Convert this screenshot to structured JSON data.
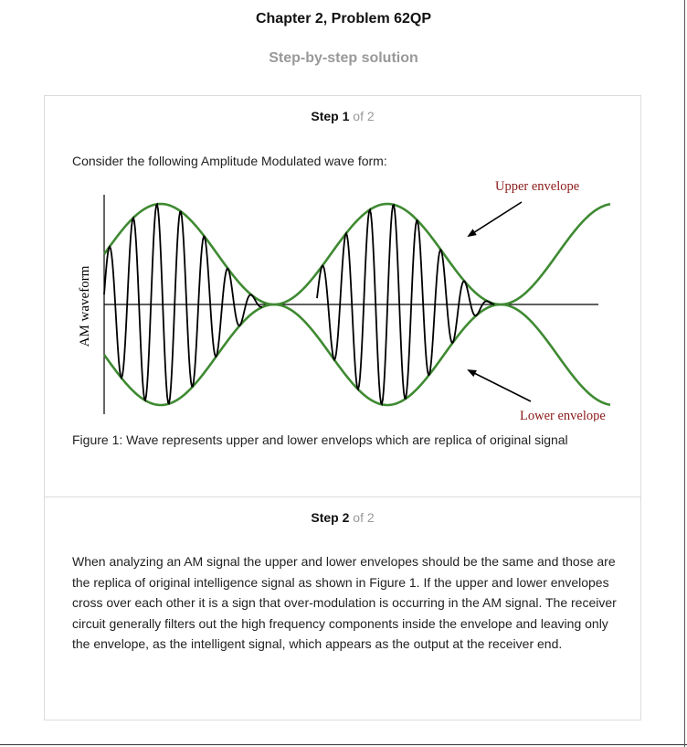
{
  "header": {
    "title": "Chapter 2, Problem 62QP",
    "subtitle": "Step-by-step solution"
  },
  "steps": [
    {
      "word": "Step",
      "number": "1",
      "of_text": "of 2",
      "intro": "Consider the following Amplitude Modulated wave form:",
      "figure": {
        "y_axis_label": "AM waveform",
        "upper_label": "Upper envelope",
        "lower_label": "Lower envelope",
        "envelope_color": "#3f8a32",
        "carrier_color": "#000000",
        "label_color": "#8b1a1a"
      },
      "caption": "Figure 1: Wave represents upper and lower envelops which are replica of original signal"
    },
    {
      "word": "Step",
      "number": "2",
      "of_text": "of 2",
      "paragraph": "When analyzing an AM signal the upper and lower envelopes should be the same and those are the replica of original intelligence signal as shown in Figure 1. If the upper and lower envelopes cross over each other it is a sign that over-modulation is occurring in the AM signal. The receiver circuit generally filters out the high frequency components inside the envelope and leaving only the envelope, as the intelligent signal, which appears as the output at the receiver end."
    }
  ]
}
